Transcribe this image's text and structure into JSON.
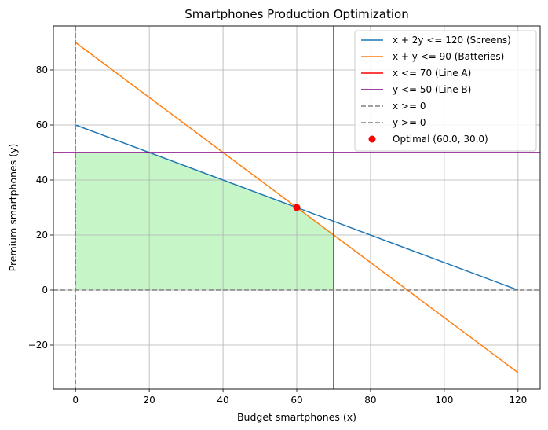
{
  "chart_data": {
    "type": "line",
    "title": "Smartphones Production Optimization",
    "xlabel": "Budget smartphones (x)",
    "ylabel": "Premium smartphones (y)",
    "xlim": [
      -6,
      126
    ],
    "ylim": [
      -36,
      96
    ],
    "xticks": [
      0,
      20,
      40,
      60,
      80,
      100,
      120
    ],
    "yticks": [
      -20,
      0,
      20,
      40,
      60,
      80
    ],
    "grid": true,
    "legend_position": "top-right",
    "feasible_region": {
      "color": "#c6f5c8",
      "vertices": [
        [
          0,
          0
        ],
        [
          0,
          50
        ],
        [
          20,
          50
        ],
        [
          60,
          30
        ],
        [
          70,
          20
        ],
        [
          70,
          0
        ]
      ]
    },
    "series": [
      {
        "name": "x + 2y <= 120 (Screens)",
        "kind": "segment",
        "color": "#1f77b4",
        "dashed": false,
        "x": [
          0,
          120
        ],
        "y": [
          60,
          0
        ]
      },
      {
        "name": "x + y <= 90 (Batteries)",
        "kind": "segment",
        "color": "#ff7f0e",
        "dashed": false,
        "x": [
          0,
          120
        ],
        "y": [
          90,
          -30
        ]
      },
      {
        "name": "x <= 70 (Line A)",
        "kind": "vline",
        "color": "#ff0000",
        "dashed": false,
        "value": 70
      },
      {
        "name": "y <= 50 (Line B)",
        "kind": "hline",
        "color": "#800080",
        "dashed": false,
        "value": 50
      },
      {
        "name": "x >= 0",
        "kind": "vline",
        "color": "#808080",
        "dashed": true,
        "value": 0
      },
      {
        "name": "y >= 0",
        "kind": "hline",
        "color": "#808080",
        "dashed": true,
        "value": 0
      }
    ],
    "points": [
      {
        "name": "Optimal (60.0, 30.0)",
        "x": 60,
        "y": 30,
        "color": "#ff0000"
      }
    ]
  }
}
